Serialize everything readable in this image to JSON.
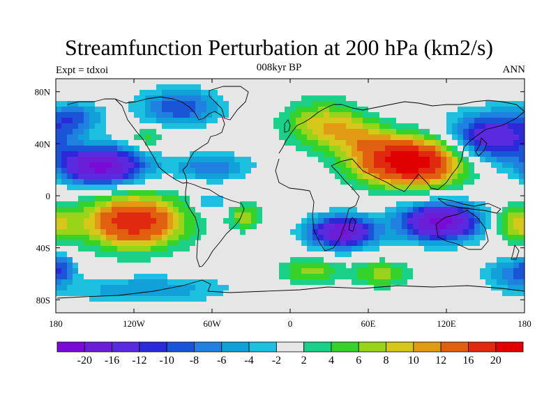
{
  "title": "Streamfunction Perturbation at 200 hPa (km2/s)",
  "subtitle": "008kyr BP",
  "left_label": "Expt = tdxoi",
  "right_label": "ANN",
  "map": {
    "projection": "cylindrical-equidistant",
    "lon_range": [
      -180,
      180
    ],
    "lat_range": [
      -90,
      90
    ],
    "lon_ticks": [
      {
        "value": -180,
        "label": "180"
      },
      {
        "value": -120,
        "label": "120W"
      },
      {
        "value": -60,
        "label": "60W"
      },
      {
        "value": 0,
        "label": "0"
      },
      {
        "value": 60,
        "label": "60E"
      },
      {
        "value": 120,
        "label": "120E"
      },
      {
        "value": 180,
        "label": "180"
      }
    ],
    "lat_ticks": [
      {
        "value": 80,
        "label": "80N"
      },
      {
        "value": 40,
        "label": "40N"
      },
      {
        "value": 0,
        "label": "0"
      },
      {
        "value": -40,
        "label": "40S"
      },
      {
        "value": -80,
        "label": "80S"
      }
    ],
    "missing_color": "#e6e6e6",
    "anomalies": [
      {
        "lon": 92,
        "lat": 26,
        "rlon": 40,
        "rlat": 18,
        "amp": 24
      },
      {
        "lon": 25,
        "lat": 55,
        "rlon": 30,
        "rlat": 18,
        "amp": 9
      },
      {
        "lon": 55,
        "lat": 45,
        "rlon": 25,
        "rlat": 14,
        "amp": 6
      },
      {
        "lon": -120,
        "lat": -20,
        "rlon": 38,
        "rlat": 20,
        "amp": 19
      },
      {
        "lon": -85,
        "lat": 68,
        "rlon": 30,
        "rlat": 14,
        "amp": -10
      },
      {
        "lon": -145,
        "lat": 23,
        "rlon": 32,
        "rlat": 14,
        "amp": -22
      },
      {
        "lon": -60,
        "lat": 22,
        "rlon": 28,
        "rlat": 10,
        "amp": -8
      },
      {
        "lon": 155,
        "lat": 45,
        "rlon": 32,
        "rlat": 18,
        "amp": -16
      },
      {
        "lon": 40,
        "lat": -28,
        "rlon": 25,
        "rlat": 12,
        "amp": -20
      },
      {
        "lon": 115,
        "lat": -20,
        "rlon": 30,
        "rlat": 14,
        "amp": -22
      },
      {
        "lon": -35,
        "lat": -16,
        "rlon": 12,
        "rlat": 10,
        "amp": 8
      },
      {
        "lon": 15,
        "lat": -58,
        "rlon": 22,
        "rlat": 10,
        "amp": 7
      },
      {
        "lon": 70,
        "lat": -60,
        "rlon": 22,
        "rlat": 10,
        "amp": 7
      },
      {
        "lon": -110,
        "lat": -72,
        "rlon": 60,
        "rlat": 10,
        "amp": -6
      },
      {
        "lon": 170,
        "lat": -60,
        "rlon": 20,
        "rlat": 12,
        "amp": -7
      },
      {
        "lon": -175,
        "lat": -55,
        "rlon": 10,
        "rlat": 10,
        "amp": -7
      },
      {
        "lon": 175,
        "lat": -22,
        "rlon": 18,
        "rlat": 14,
        "amp": 9
      },
      {
        "lon": -165,
        "lat": 60,
        "rlon": 20,
        "rlat": 12,
        "amp": -8
      },
      {
        "lon": -60,
        "lat": -5,
        "rlon": 14,
        "rlat": 8,
        "amp": -5
      },
      {
        "lon": -110,
        "lat": 45,
        "rlon": 14,
        "rlat": 8,
        "amp": 5
      }
    ]
  },
  "colorbar": {
    "levels": [
      -20,
      -16,
      -12,
      -10,
      -8,
      -6,
      -4,
      -2,
      2,
      4,
      6,
      8,
      10,
      12,
      16,
      20
    ],
    "labels": [
      "-20",
      "-16",
      "-12",
      "-10",
      "-8",
      "-6",
      "-4",
      "-2",
      "2",
      "4",
      "6",
      "8",
      "10",
      "12",
      "16",
      "20"
    ],
    "colors": [
      "#7a0ad6",
      "#6a1ed6",
      "#5a2ade",
      "#2a2ad8",
      "#1a55d8",
      "#1f80e0",
      "#11a1d8",
      "#1ec0e0",
      "#e6e6e6",
      "#1ad088",
      "#36d22a",
      "#9ad41a",
      "#d6c81a",
      "#e09a14",
      "#e06010",
      "#e02a10",
      "#e00000"
    ]
  }
}
